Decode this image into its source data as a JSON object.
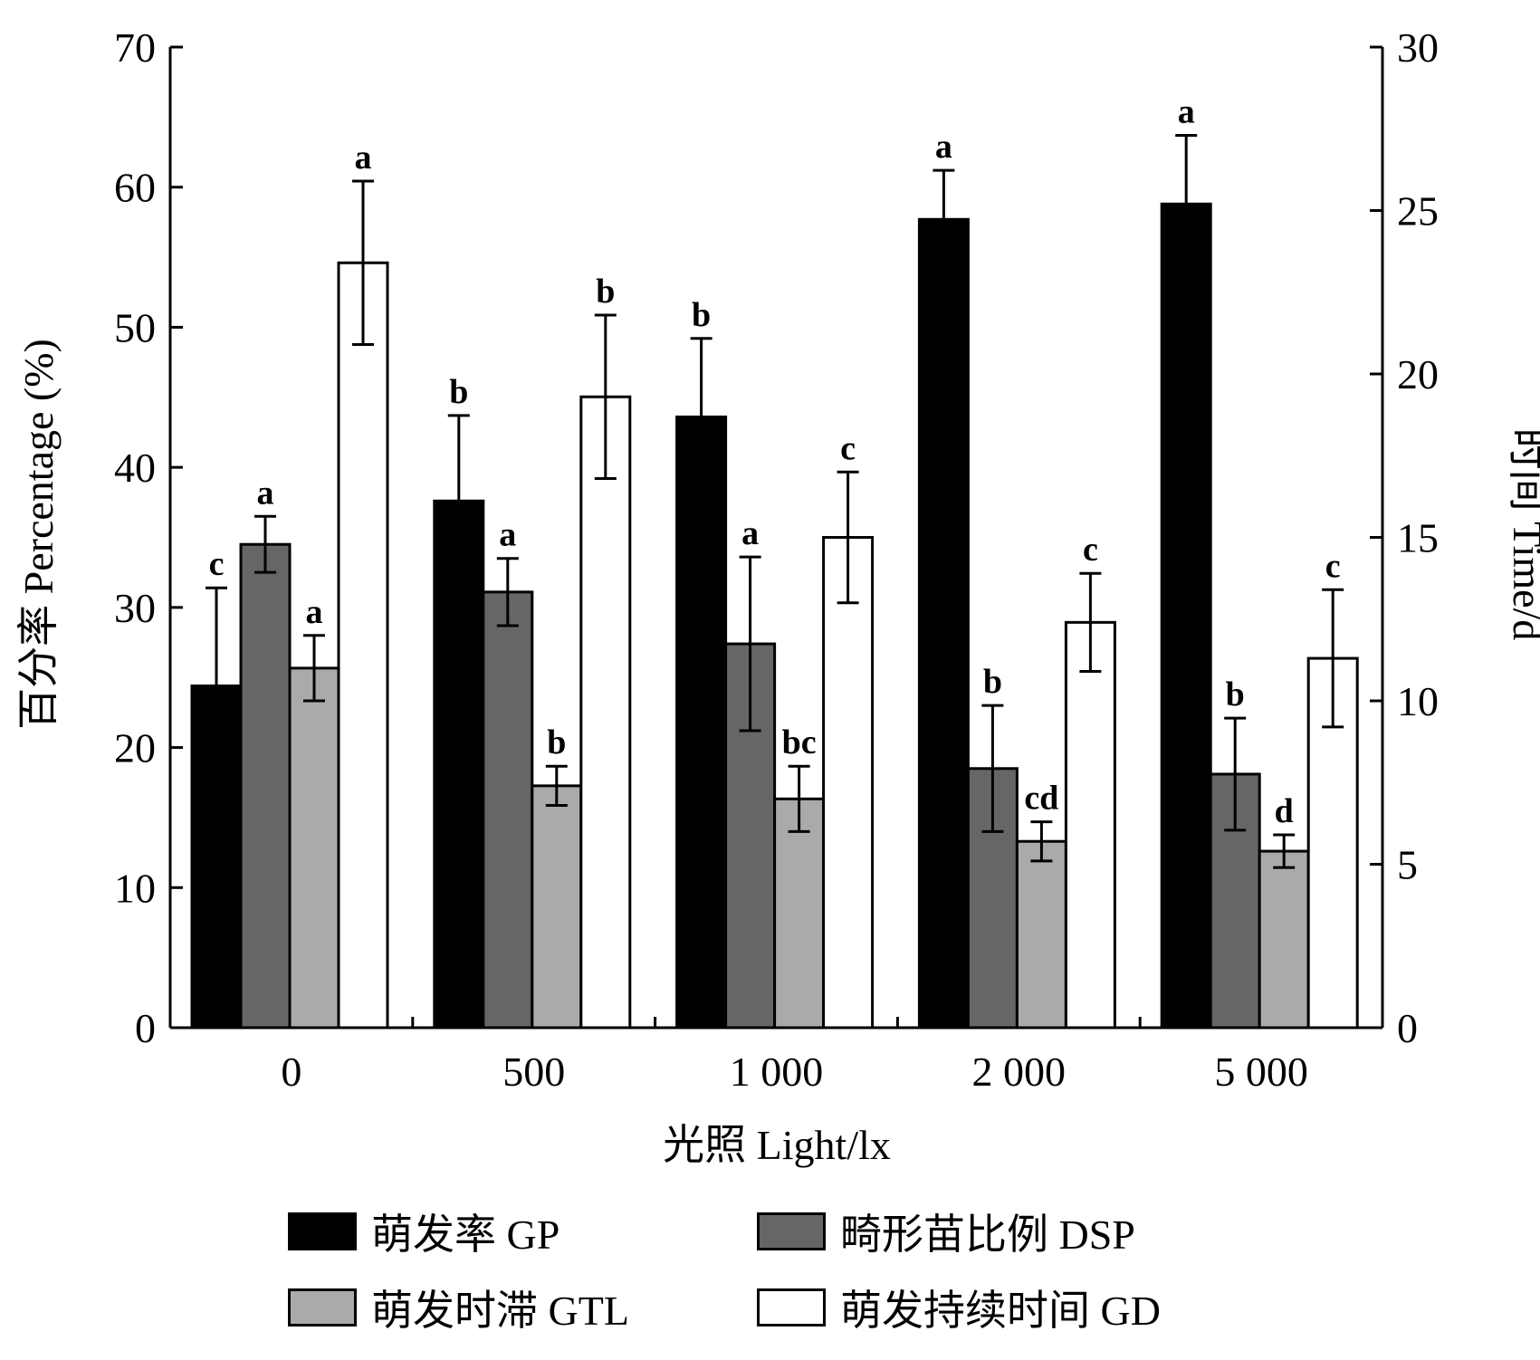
{
  "chart_data": {
    "type": "bar",
    "xlabel": "光照  Light/lx",
    "ylabel_left": "百分率  Percentage (%)",
    "ylabel_right": "时间  Time/d",
    "ylim_left": [
      0,
      70
    ],
    "ylim_right": [
      0,
      30
    ],
    "yticks_left": [
      "0",
      "10",
      "20",
      "30",
      "40",
      "50",
      "60",
      "70"
    ],
    "yticks_right": [
      "0",
      "5",
      "10",
      "15",
      "20",
      "25",
      "30"
    ],
    "categories": [
      "0",
      "500",
      "1 000",
      "2 000",
      "5 000"
    ],
    "grid": false,
    "legend_position": "bottom",
    "series": [
      {
        "name": "萌发率  GP",
        "axis": "left",
        "color": "#000000",
        "values": [
          24.4,
          37.6,
          43.6,
          57.7,
          58.8
        ],
        "errors": [
          7.0,
          6.1,
          5.6,
          3.5,
          4.9
        ],
        "labels": [
          "c",
          "b",
          "b",
          "a",
          "a"
        ]
      },
      {
        "name": "畸形苗比例  DSP",
        "axis": "left",
        "color": "#666666",
        "values": [
          34.5,
          31.1,
          27.4,
          18.5,
          18.1
        ],
        "errors": [
          2.0,
          2.4,
          6.2,
          4.5,
          4.0
        ],
        "labels": [
          "a",
          "a",
          "a",
          "b",
          "b"
        ]
      },
      {
        "name": "萌发时滞  GTL",
        "axis": "right",
        "color": "#aaaaaa",
        "values": [
          11.0,
          7.4,
          7.0,
          5.7,
          5.4
        ],
        "errors": [
          1.0,
          0.6,
          1.0,
          0.6,
          0.5
        ],
        "labels": [
          "a",
          "b",
          "bc",
          "cd",
          "d"
        ]
      },
      {
        "name": "萌发持续时间  GD",
        "axis": "right",
        "color": "#ffffff",
        "values": [
          23.4,
          19.3,
          15.0,
          12.4,
          11.3
        ],
        "errors": [
          2.5,
          2.5,
          2.0,
          1.5,
          2.1
        ],
        "labels": [
          "a",
          "b",
          "c",
          "c",
          "c"
        ]
      }
    ]
  }
}
